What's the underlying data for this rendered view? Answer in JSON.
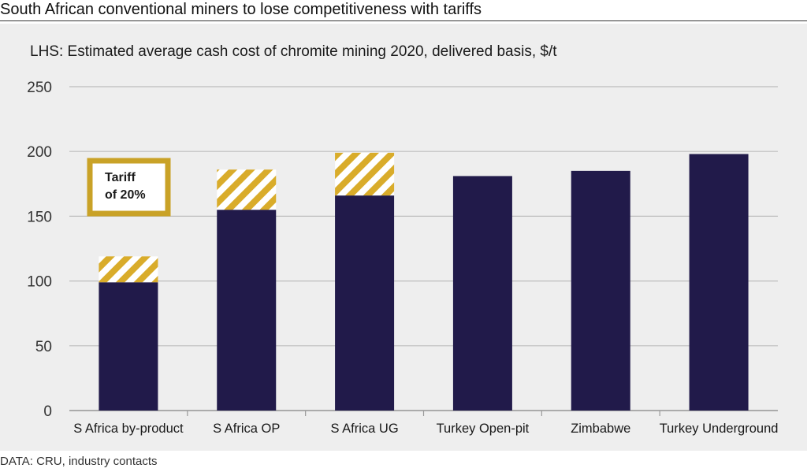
{
  "headline": "South African conventional miners to lose competitiveness with tariffs",
  "source": "DATA: CRU, industry contacts",
  "annotation": {
    "line1": "Tariff",
    "line2": "of 20%"
  },
  "colors": {
    "bar": "#211a4a",
    "tariff_stripe": "#d9ac2a",
    "annotation_border": "#c9a227",
    "grid": "#bdbdbd",
    "panel": "#eeeeee"
  },
  "chart_data": {
    "type": "bar",
    "stacked": true,
    "title": "LHS: Estimated average cash cost of chromite mining 2020, delivered basis, $/t",
    "xlabel": "",
    "ylabel": "",
    "ylim": [
      0,
      250
    ],
    "yticks": [
      0,
      50,
      100,
      150,
      200,
      250
    ],
    "grid": true,
    "categories": [
      "S Africa by-product",
      "S Africa OP",
      "S Africa UG",
      "Turkey Open-pit",
      "Zimbabwe",
      "Turkey Underground"
    ],
    "series": [
      {
        "name": "",
        "values": [
          99,
          155,
          166,
          181,
          185,
          198
        ]
      },
      {
        "name": "",
        "values": [
          20,
          31,
          33,
          0,
          0,
          0
        ]
      }
    ]
  }
}
